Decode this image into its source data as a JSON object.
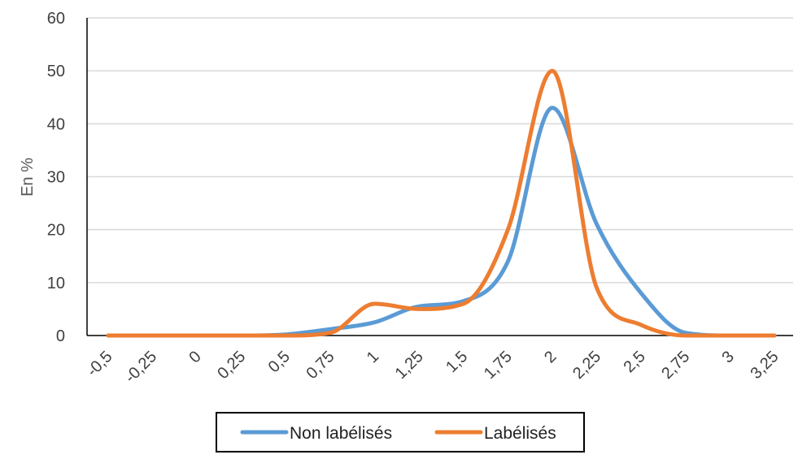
{
  "chart_data": {
    "type": "line",
    "title": "",
    "xlabel": "",
    "ylabel": "En %",
    "ylim": [
      0,
      60
    ],
    "yticks": [
      "0",
      "10",
      "20",
      "30",
      "40",
      "50",
      "60"
    ],
    "xlim": [
      -0.5,
      3.25
    ],
    "xticks": [
      {
        "value": -0.5,
        "label": "-0,5"
      },
      {
        "value": -0.25,
        "label": "-0,25"
      },
      {
        "value": 0,
        "label": "0"
      },
      {
        "value": 0.25,
        "label": "0,25"
      },
      {
        "value": 0.5,
        "label": "0,5"
      },
      {
        "value": 0.75,
        "label": "0,75"
      },
      {
        "value": 1,
        "label": "1"
      },
      {
        "value": 1.25,
        "label": "1,25"
      },
      {
        "value": 1.5,
        "label": "1,5"
      },
      {
        "value": 1.75,
        "label": "1,75"
      },
      {
        "value": 2,
        "label": "2"
      },
      {
        "value": 2.25,
        "label": "2,25"
      },
      {
        "value": 2.5,
        "label": "2,5"
      },
      {
        "value": 2.75,
        "label": "2,75"
      },
      {
        "value": 3,
        "label": "3"
      },
      {
        "value": 3.25,
        "label": "3,25"
      }
    ],
    "grid": true,
    "legend_position": "bottom",
    "series": [
      {
        "name": "Non labélisés",
        "color": "#5b9bd5",
        "x": [
          -0.5,
          -0.25,
          0,
          0.25,
          0.5,
          0.75,
          1,
          1.25,
          1.5,
          1.75,
          2,
          2.25,
          2.5,
          2.75,
          3,
          3.25
        ],
        "values": [
          0,
          0,
          0,
          0,
          0.2,
          1.2,
          2.5,
          5.5,
          6.5,
          14,
          43,
          21,
          8,
          0.5,
          0,
          0
        ]
      },
      {
        "name": "Labélisés",
        "color": "#ed7d31",
        "x": [
          -0.5,
          -0.25,
          0,
          0.25,
          0.5,
          0.75,
          1,
          1.25,
          1.5,
          1.75,
          2,
          2.25,
          2.5,
          2.75,
          3,
          3.25
        ],
        "values": [
          0,
          0,
          0,
          0,
          0,
          0.5,
          6,
          5,
          6,
          20,
          50,
          9,
          2,
          0,
          0,
          0
        ]
      }
    ]
  }
}
